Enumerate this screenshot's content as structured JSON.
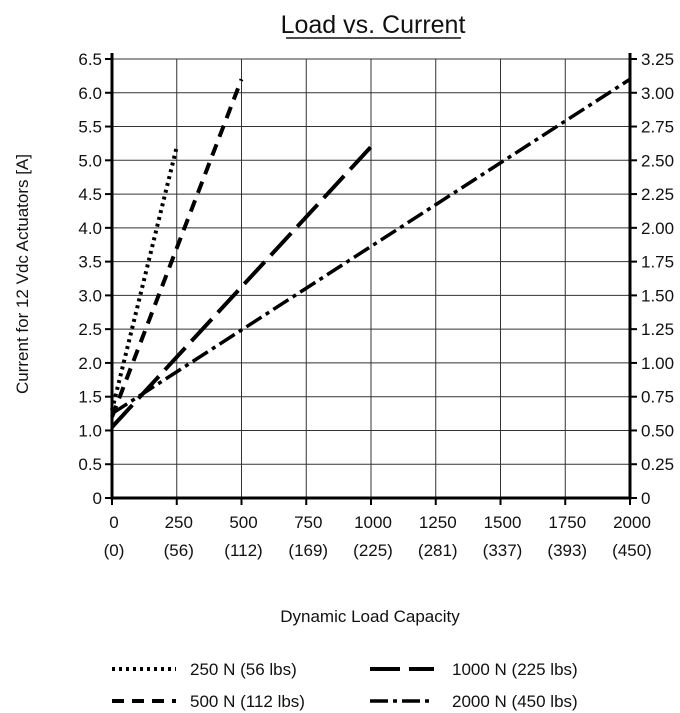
{
  "chart_data": {
    "type": "line",
    "title": "Load vs. Current",
    "xlabel": "Dynamic Load Capacity",
    "ylabel": "Current for 12 Vdc Actuators  [A]",
    "xlim": [
      0,
      2000
    ],
    "ylim": [
      0,
      6.5
    ],
    "y2lim": [
      0,
      3.25
    ],
    "grid": true,
    "legend_position": "bottom",
    "x_ticks": [
      0,
      250,
      500,
      750,
      1000,
      1250,
      1500,
      1750,
      2000
    ],
    "x_tick_labels": [
      "0",
      "250",
      "500",
      "750",
      "1000",
      "1250",
      "1500",
      "1750",
      "2000"
    ],
    "x_tick_sublabels": [
      "(0)",
      "(56)",
      "(112)",
      "(169)",
      "(225)",
      "(281)",
      "(337)",
      "(393)",
      "(450)"
    ],
    "y_ticks": [
      0,
      0.5,
      1.0,
      1.5,
      2.0,
      2.5,
      3.0,
      3.5,
      4.0,
      4.5,
      5.0,
      5.5,
      6.0,
      6.5
    ],
    "y_tick_labels": [
      "0",
      "0.5",
      "1.0",
      "1.5",
      "2.0",
      "2.5",
      "3.0",
      "3.5",
      "4.0",
      "4.5",
      "5.0",
      "5.5",
      "6.0",
      "6.5"
    ],
    "y2_ticks": [
      0,
      0.25,
      0.5,
      0.75,
      1.0,
      1.25,
      1.5,
      1.75,
      2.0,
      2.25,
      2.5,
      2.75,
      3.0,
      3.25
    ],
    "y2_tick_labels": [
      "0",
      "0.25",
      "0.50",
      "0.75",
      "1.00",
      "1.25",
      "1.50",
      "1.75",
      "2.00",
      "2.25",
      "2.50",
      "2.75",
      "3.00",
      "3.25"
    ],
    "series": [
      {
        "name": "250 N (56 lbs)",
        "dash": "dotted",
        "x": [
          0,
          250
        ],
        "y": [
          1.3,
          5.2
        ]
      },
      {
        "name": "500 N (112 lbs)",
        "dash": "dashed",
        "x": [
          0,
          500
        ],
        "y": [
          1.2,
          6.2
        ]
      },
      {
        "name": "1000 N (225 lbs)",
        "dash": "long-dash",
        "x": [
          0,
          1000
        ],
        "y": [
          1.05,
          5.2
        ]
      },
      {
        "name": "2000 N (450 lbs)",
        "dash": "dash-dot",
        "x": [
          0,
          2000
        ],
        "y": [
          1.25,
          6.2
        ]
      }
    ]
  }
}
